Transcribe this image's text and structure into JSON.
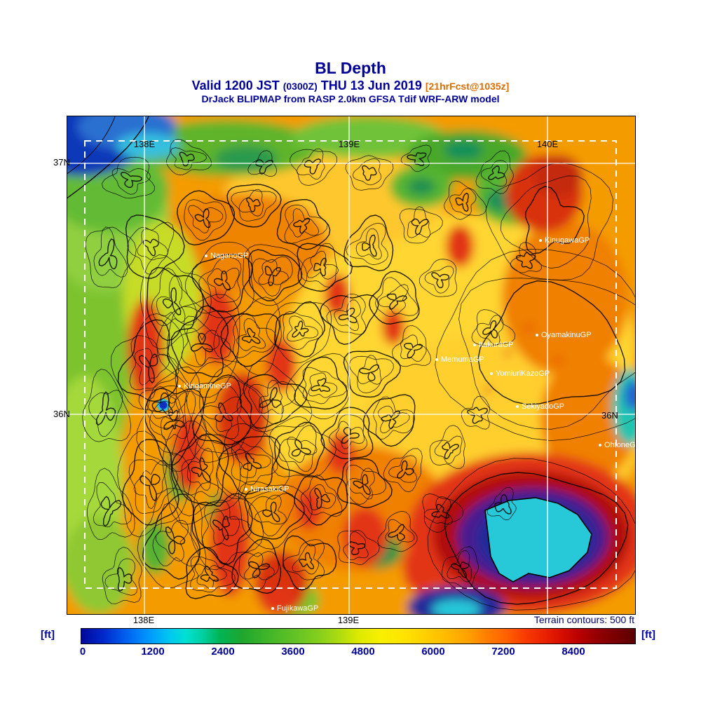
{
  "header": {
    "title": "BL Depth",
    "valid_prefix": "Valid 1200 JST",
    "valid_zulu": "(0300Z)",
    "valid_date": "THU 13 Jun 2019",
    "forecast_tag": "[21hrFcst@1035z]",
    "model_line": "DrJack BLIPMAP from RASP 2.0km GFSA Tdif WRF-ARW model"
  },
  "map": {
    "lon_labels_top": [
      "138E",
      "139E",
      "140E"
    ],
    "lon_labels_bottom": [
      "138E",
      "139E"
    ],
    "lat_labels_left": [
      "37N",
      "36N"
    ],
    "lat_label_right": "36N",
    "sites": [
      {
        "name": "NaganoGP"
      },
      {
        "name": "KinugawaGP"
      },
      {
        "name": "KirigamineGP"
      },
      {
        "name": "OyamakinuGP"
      },
      {
        "name": "ItakuraGP"
      },
      {
        "name": "MemumaGP"
      },
      {
        "name": "YomiuriKazoGP"
      },
      {
        "name": "SekiyadoGP"
      },
      {
        "name": "OhtoneGP"
      },
      {
        "name": "NirasakiGP"
      },
      {
        "name": "FujikawaGP"
      }
    ]
  },
  "legend": {
    "units": "[ft]",
    "note": "Terrain contours: 500 ft",
    "ticks": [
      "0",
      "1200",
      "2400",
      "3600",
      "4800",
      "6000",
      "7200",
      "8400"
    ]
  },
  "colors": {
    "navy_text": "#000099",
    "forecast_tag_orange": "#d96d00",
    "site_label_white": "#ffffff",
    "colorbar_scale": [
      "#000899",
      "#0060ee",
      "#00c8f0",
      "#00b455",
      "#3cb32a",
      "#b2dd0e",
      "#ffe400",
      "#ff9f00",
      "#f93c00",
      "#b80000",
      "#5a0000"
    ]
  }
}
